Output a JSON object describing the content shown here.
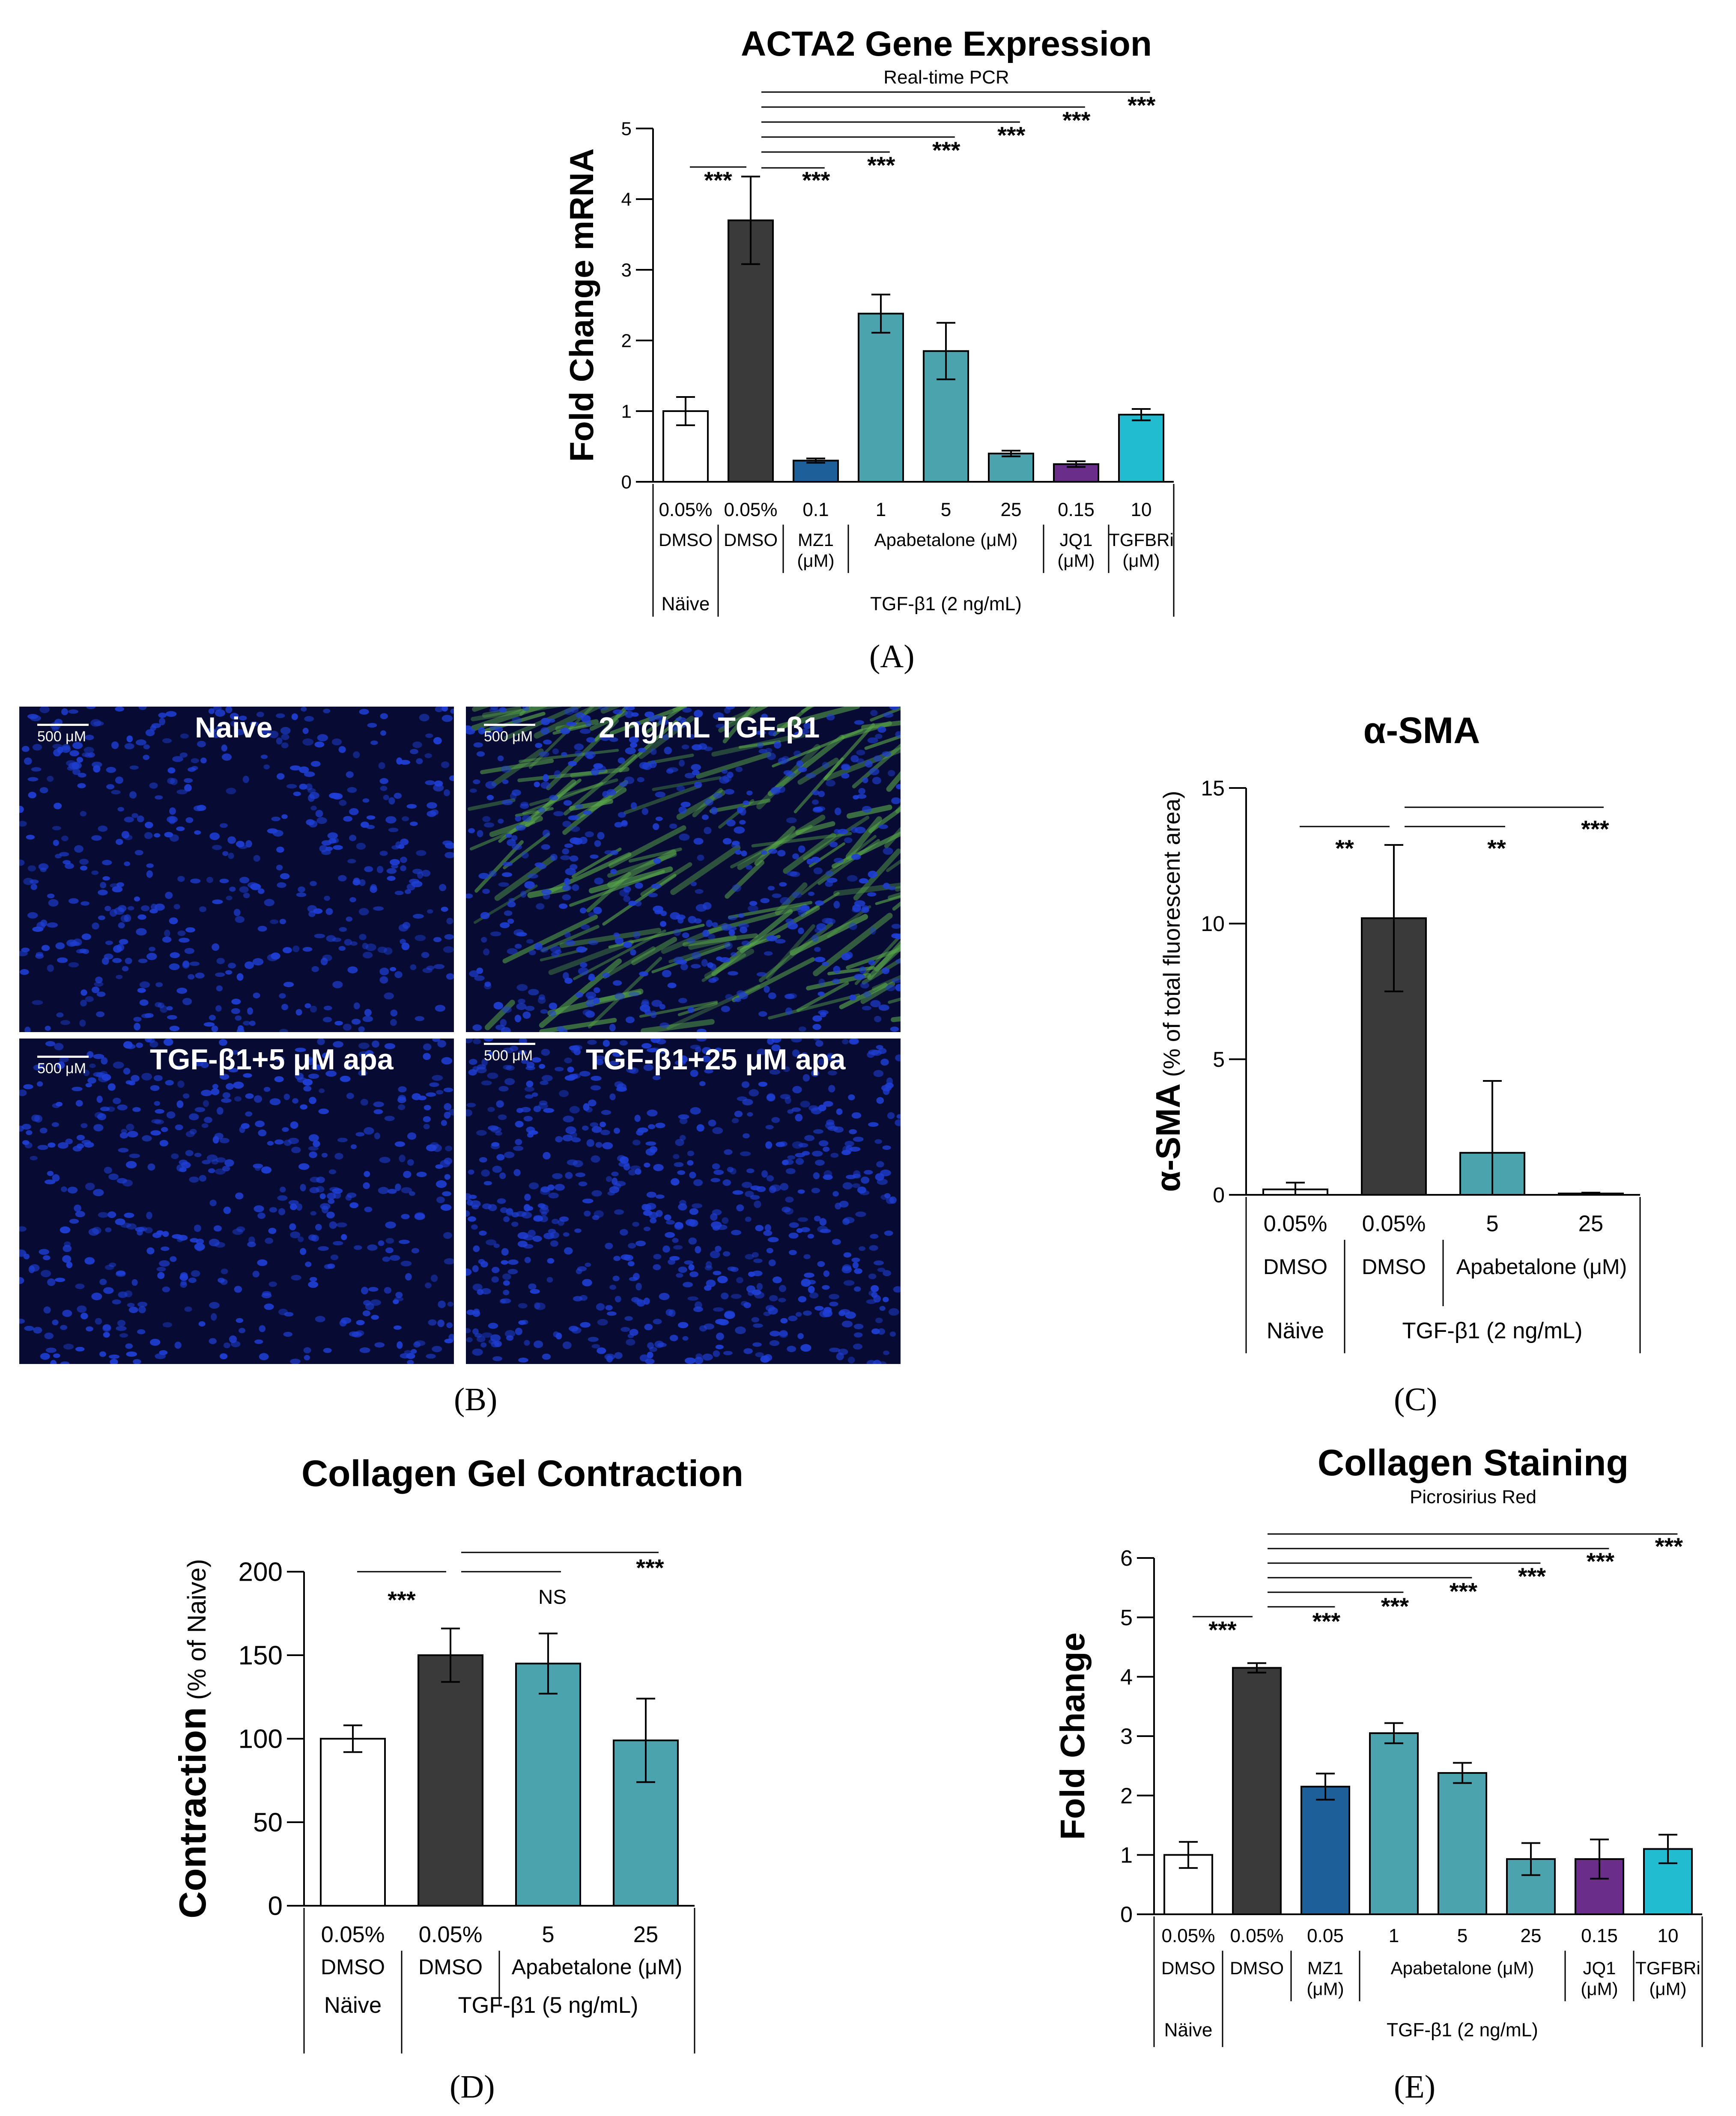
{
  "panel_labels": {
    "a": "(A)",
    "b": "(B)",
    "c": "(C)",
    "d": "(D)",
    "e": "(E)"
  },
  "micrographs": [
    {
      "title": "Naive",
      "scale": "500 μM"
    },
    {
      "title": "2 ng/mL  TGF-β1",
      "scale": "500 μM"
    },
    {
      "title": "TGF-β1+5 μM apa",
      "scale": "500 μM"
    },
    {
      "title": "TGF-β1+25 μM apa",
      "scale": "500 μM"
    }
  ],
  "colors": {
    "white": "#ffffff",
    "dark": "#3a3a3a",
    "navy": "#1d5f99",
    "teal": "#4ba3ad",
    "purple": "#6a2d8a",
    "cyan": "#21bccf",
    "nuclei": "#1f3fd6",
    "fibers": "#5aa84a"
  },
  "chart_data": [
    {
      "id": "acta2",
      "type": "bar",
      "title": "ACTA2 Gene Expression",
      "subtitle": "Real-time PCR",
      "ylabel": "Fold Change mRNA",
      "ylim": [
        0,
        5
      ],
      "yticks": [
        "0",
        "1",
        "2",
        "3",
        "4",
        "5"
      ],
      "categories": [
        "0.05%",
        "0.05%",
        "0.1",
        "1",
        "5",
        "25",
        "0.15",
        "10"
      ],
      "values": [
        1.0,
        3.7,
        0.3,
        2.38,
        1.85,
        0.4,
        0.25,
        0.95
      ],
      "errors": [
        0.2,
        0.62,
        0.03,
        0.27,
        0.4,
        0.04,
        0.04,
        0.08
      ],
      "colors": [
        "#ffffff",
        "#3a3a3a",
        "#1d5f99",
        "#4ba3ad",
        "#4ba3ad",
        "#4ba3ad",
        "#6a2d8a",
        "#21bccf"
      ],
      "row2": [
        "DMSO",
        "DMSO",
        "MZ1\n(μM)",
        "Apabetalone (μM)",
        "JQ1\n(μM)",
        "TGFBRi\n(μM)"
      ],
      "row3": [
        "Näive",
        "TGF-β1 (2 ng/mL)"
      ],
      "significance": [
        "***",
        "***",
        "***",
        "***",
        "***",
        "***",
        "***"
      ]
    },
    {
      "id": "asma",
      "type": "bar",
      "title": "α-SMA",
      "ylabel": "α-SMA",
      "ylabel_suffix": " (% of total fluorescent area)",
      "ylim": [
        0,
        15
      ],
      "yticks": [
        "0",
        "5",
        "10",
        "15"
      ],
      "categories": [
        "0.05%",
        "0.05%",
        "5",
        "25"
      ],
      "values": [
        0.2,
        10.2,
        1.55,
        0.05
      ],
      "errors": [
        0.25,
        2.7,
        2.65,
        0.03
      ],
      "colors": [
        "#ffffff",
        "#3a3a3a",
        "#4ba3ad",
        "#4ba3ad"
      ],
      "row2": [
        "DMSO",
        "DMSO",
        "Apabetalone (μM)"
      ],
      "row3": [
        "Näive",
        "TGF-β1 (2 ng/mL)"
      ],
      "significance": [
        "**",
        "**",
        "***"
      ]
    },
    {
      "id": "gel",
      "type": "bar",
      "title": "Collagen Gel Contraction",
      "ylabel": "Contraction",
      "ylabel_suffix": " (% of Naive)",
      "ylim": [
        0,
        200
      ],
      "yticks": [
        "0",
        "50",
        "100",
        "150",
        "200"
      ],
      "categories": [
        "0.05%",
        "0.05%",
        "5",
        "25"
      ],
      "values": [
        100,
        150,
        145,
        99
      ],
      "errors": [
        8,
        16,
        18,
        25
      ],
      "colors": [
        "#ffffff",
        "#3a3a3a",
        "#4ba3ad",
        "#4ba3ad"
      ],
      "row2": [
        "DMSO",
        "DMSO",
        "Apabetalone (μM)"
      ],
      "row3": [
        "Näive",
        "TGF-β1 (5 ng/mL)"
      ],
      "significance": [
        "***",
        "NS",
        "***"
      ]
    },
    {
      "id": "stain",
      "type": "bar",
      "title": "Collagen Staining",
      "subtitle": "Picrosirius Red",
      "ylabel": "Fold Change",
      "ylim": [
        0,
        6
      ],
      "yticks": [
        "0",
        "1",
        "2",
        "3",
        "4",
        "5",
        "6"
      ],
      "categories": [
        "0.05%",
        "0.05%",
        "0.05",
        "1",
        "5",
        "25",
        "0.15",
        "10"
      ],
      "values": [
        1.0,
        4.15,
        2.15,
        3.05,
        2.38,
        0.93,
        0.93,
        1.1
      ],
      "errors": [
        0.22,
        0.08,
        0.22,
        0.17,
        0.17,
        0.27,
        0.33,
        0.24
      ],
      "colors": [
        "#ffffff",
        "#3a3a3a",
        "#1d5f99",
        "#4ba3ad",
        "#4ba3ad",
        "#4ba3ad",
        "#6a2d8a",
        "#21bccf"
      ],
      "row2": [
        "DMSO",
        "DMSO",
        "MZ1\n(μM)",
        "Apabetalone (μM)",
        "JQ1\n(μM)",
        "TGFBRi\n(μM)"
      ],
      "row3": [
        "Näive",
        "TGF-β1 (2 ng/mL)"
      ],
      "significance": [
        "***",
        "***",
        "***",
        "***",
        "***",
        "***",
        "***"
      ]
    }
  ]
}
